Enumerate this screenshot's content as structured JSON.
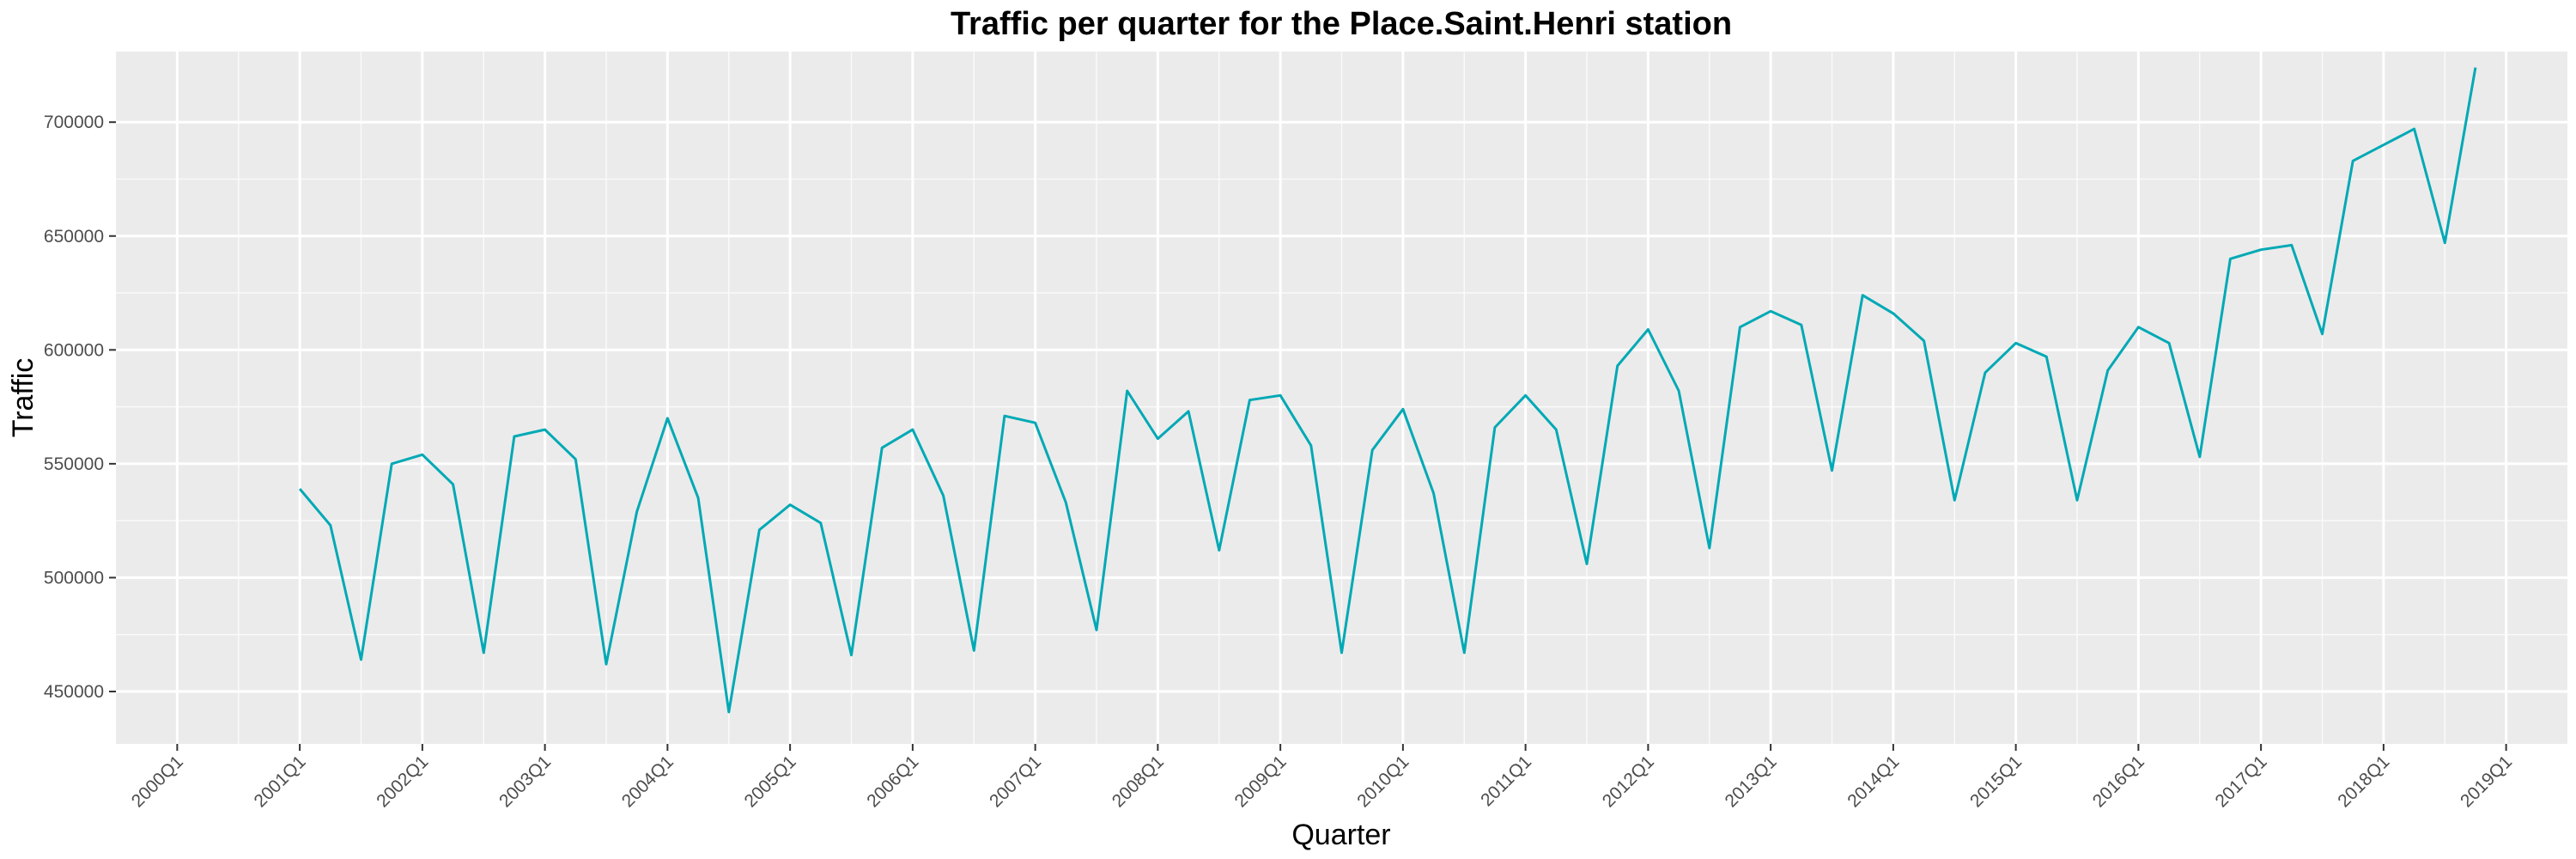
{
  "chart_data": {
    "type": "line",
    "title": "Traffic per quarter for the Place.Saint.Henri station",
    "xlabel": "Quarter",
    "ylabel": "Traffic",
    "x_tick_labels": [
      "2000Q1",
      "2001Q1",
      "2002Q1",
      "2003Q1",
      "2004Q1",
      "2005Q1",
      "2006Q1",
      "2007Q1",
      "2008Q1",
      "2009Q1",
      "2010Q1",
      "2011Q1",
      "2012Q1",
      "2013Q1",
      "2014Q1",
      "2015Q1",
      "2016Q1",
      "2017Q1",
      "2018Q1",
      "2019Q1"
    ],
    "y_ticks": [
      450000,
      500000,
      550000,
      600000,
      650000,
      700000
    ],
    "y_tick_labels": [
      "450000",
      "500000",
      "550000",
      "600000",
      "650000",
      "700000"
    ],
    "ylim": [
      427000,
      731000
    ],
    "xlim": [
      "1999Q3",
      "2019Q3"
    ],
    "grid": true,
    "legend": "none",
    "line_color": "#00a9b5",
    "panel_color": "#ebebeb",
    "series": [
      {
        "x": [
          "2001Q1",
          "2001Q2",
          "2001Q3",
          "2001Q4",
          "2002Q1",
          "2002Q2",
          "2002Q3",
          "2002Q4",
          "2003Q1",
          "2003Q2",
          "2003Q3",
          "2003Q4",
          "2004Q1",
          "2004Q2",
          "2004Q3",
          "2004Q4",
          "2005Q1",
          "2005Q2",
          "2005Q3",
          "2005Q4",
          "2006Q1",
          "2006Q2",
          "2006Q3",
          "2006Q4",
          "2007Q1",
          "2007Q2",
          "2007Q3",
          "2007Q4",
          "2008Q1",
          "2008Q2",
          "2008Q3",
          "2008Q4",
          "2009Q1",
          "2009Q2",
          "2009Q3",
          "2009Q4",
          "2010Q1",
          "2010Q2",
          "2010Q3",
          "2010Q4",
          "2011Q1",
          "2011Q2",
          "2011Q3",
          "2011Q4",
          "2012Q1",
          "2012Q2",
          "2012Q3",
          "2012Q4",
          "2013Q1",
          "2013Q2",
          "2013Q3",
          "2013Q4",
          "2014Q1",
          "2014Q2",
          "2014Q3",
          "2014Q4",
          "2015Q1",
          "2015Q2",
          "2015Q3",
          "2015Q4",
          "2016Q1",
          "2016Q2",
          "2016Q3",
          "2016Q4",
          "2017Q1",
          "2017Q2",
          "2017Q3",
          "2017Q4",
          "2018Q1",
          "2018Q2",
          "2018Q3",
          "2018Q4"
        ],
        "values": [
          539000,
          523000,
          464000,
          550000,
          554000,
          541000,
          467000,
          562000,
          565000,
          552000,
          462000,
          529000,
          570000,
          535000,
          441000,
          521000,
          532000,
          524000,
          466000,
          557000,
          565000,
          536000,
          468000,
          571000,
          568000,
          533000,
          477000,
          582000,
          561000,
          573000,
          512000,
          578000,
          580000,
          558000,
          467000,
          556000,
          574000,
          537000,
          467000,
          566000,
          580000,
          565000,
          506000,
          593000,
          609000,
          582000,
          513000,
          610000,
          617000,
          611000,
          547000,
          624000,
          616000,
          604000,
          534000,
          590000,
          603000,
          597000,
          534000,
          591000,
          610000,
          603000,
          553000,
          640000,
          644000,
          646000,
          607000,
          683000,
          690000,
          697000,
          647000,
          724000
        ]
      }
    ]
  }
}
